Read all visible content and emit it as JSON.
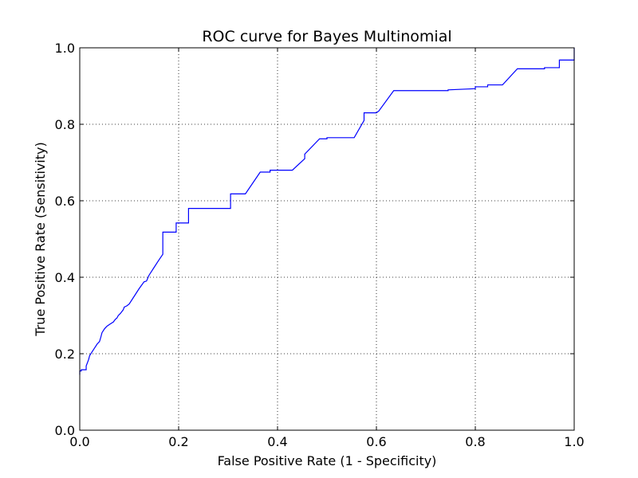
{
  "chart_data": {
    "type": "line",
    "title": "ROC curve for Bayes Multinomial",
    "xlabel": "False Positive Rate (1 - Specificity)",
    "ylabel": "True Positive Rate (Sensitivity)",
    "xlim": [
      0.0,
      1.0
    ],
    "ylim": [
      0.0,
      1.0
    ],
    "xticks": [
      "0.0",
      "0.2",
      "0.4",
      "0.6",
      "0.8",
      "1.0"
    ],
    "yticks": [
      "0.0",
      "0.2",
      "0.4",
      "0.6",
      "0.8",
      "1.0"
    ],
    "grid": true,
    "line_color": "#0000ff",
    "series": [
      {
        "x": [
          0.0,
          0.0,
          0.003,
          0.003,
          0.013,
          0.013,
          0.018,
          0.02,
          0.025,
          0.03,
          0.035,
          0.04,
          0.043,
          0.045,
          0.05,
          0.055,
          0.062,
          0.068,
          0.072,
          0.075,
          0.078,
          0.082,
          0.085,
          0.088,
          0.09,
          0.095,
          0.1,
          0.11,
          0.12,
          0.13,
          0.135,
          0.14,
          0.15,
          0.16,
          0.168,
          0.168,
          0.195,
          0.195,
          0.22,
          0.22,
          0.305,
          0.305,
          0.335,
          0.365,
          0.385,
          0.385,
          0.43,
          0.455,
          0.455,
          0.485,
          0.5,
          0.5,
          0.555,
          0.575,
          0.575,
          0.6,
          0.605,
          0.635,
          0.66,
          0.745,
          0.745,
          0.8,
          0.8,
          0.825,
          0.825,
          0.855,
          0.885,
          0.94,
          0.94,
          0.97,
          0.97,
          1.0,
          1.0
        ],
        "y": [
          0.145,
          0.155,
          0.155,
          0.158,
          0.158,
          0.168,
          0.185,
          0.195,
          0.205,
          0.215,
          0.225,
          0.232,
          0.245,
          0.255,
          0.265,
          0.272,
          0.278,
          0.283,
          0.29,
          0.293,
          0.3,
          0.305,
          0.31,
          0.315,
          0.322,
          0.325,
          0.33,
          0.35,
          0.37,
          0.388,
          0.39,
          0.405,
          0.425,
          0.445,
          0.46,
          0.518,
          0.518,
          0.542,
          0.542,
          0.58,
          0.58,
          0.618,
          0.618,
          0.675,
          0.675,
          0.68,
          0.68,
          0.71,
          0.722,
          0.762,
          0.762,
          0.765,
          0.765,
          0.81,
          0.83,
          0.83,
          0.835,
          0.888,
          0.888,
          0.888,
          0.89,
          0.893,
          0.898,
          0.898,
          0.903,
          0.903,
          0.945,
          0.945,
          0.948,
          0.948,
          0.968,
          0.968,
          1.0
        ]
      }
    ]
  }
}
